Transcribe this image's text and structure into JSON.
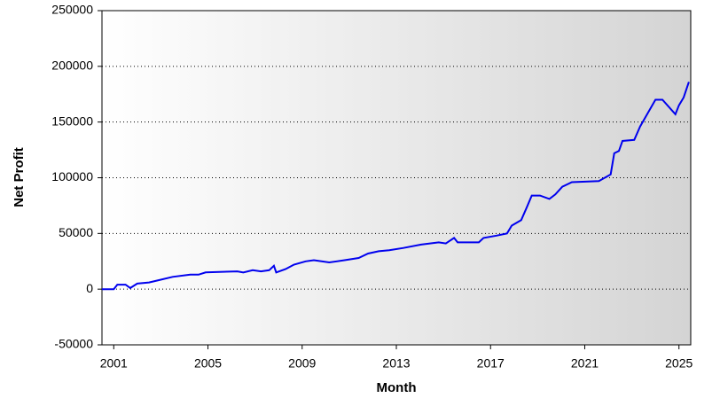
{
  "chart_data": {
    "type": "line",
    "x_label": "Month",
    "y_label": "Net Profit",
    "xlim": [
      2000.5,
      2025.5
    ],
    "xticks": [
      2001,
      2005,
      2009,
      2013,
      2017,
      2021,
      2025
    ],
    "ylim": [
      -50000,
      250000
    ],
    "yticks": [
      -50000,
      0,
      50000,
      100000,
      150000,
      200000,
      250000
    ],
    "grid": true,
    "series": [
      {
        "color": "#0000ee",
        "x": [
          2000.5,
          2001.0,
          2001.15,
          2001.5,
          2001.7,
          2002.0,
          2002.5,
          2002.9,
          2003.5,
          2004.25,
          2004.6,
          2004.9,
          2006.25,
          2006.5,
          2006.9,
          2007.25,
          2007.6,
          2007.8,
          2007.9,
          2008.3,
          2008.65,
          2009.15,
          2009.5,
          2010.15,
          2010.8,
          2011.4,
          2011.8,
          2012.25,
          2012.7,
          2013.3,
          2014.05,
          2014.8,
          2015.1,
          2015.45,
          2015.6,
          2016.5,
          2016.7,
          2017.25,
          2017.7,
          2017.9,
          2018.3,
          2018.55,
          2018.75,
          2019.1,
          2019.5,
          2019.75,
          2020.05,
          2020.45,
          2021.6,
          2022.1,
          2022.25,
          2022.45,
          2022.6,
          2023.1,
          2023.35,
          2024.0,
          2024.3,
          2024.85,
          2025.0,
          2025.2,
          2025.42
        ],
        "values": [
          0,
          0,
          4000,
          4000,
          1000,
          5000,
          6000,
          8000,
          11000,
          13000,
          13000,
          15000,
          16000,
          15000,
          17000,
          16000,
          17000,
          21000,
          15000,
          18000,
          22000,
          25000,
          26000,
          24000,
          26000,
          28000,
          32000,
          34000,
          35000,
          37000,
          40000,
          42000,
          41000,
          46000,
          42000,
          42000,
          46000,
          48000,
          50000,
          57000,
          62000,
          74000,
          84000,
          84000,
          81000,
          85000,
          92000,
          96000,
          97000,
          103000,
          122000,
          124000,
          133000,
          134000,
          146000,
          170000,
          170000,
          157000,
          165000,
          172000,
          186000
        ]
      }
    ]
  }
}
